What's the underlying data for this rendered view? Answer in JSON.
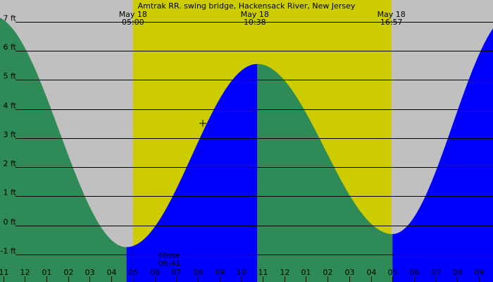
{
  "chart_data": {
    "type": "area",
    "title": "Amtrak RR. swing bridge, Hackensack River, New Jersey",
    "xlabel": "",
    "ylabel": "",
    "x_unit": "hour",
    "xlim": [
      -1.15,
      21.65
    ],
    "ylim": [
      -1.95,
      7.75
    ],
    "day_window": [
      5.0,
      16.95
    ],
    "colors": {
      "background": "#c0c0c0",
      "day": "#cccc00",
      "falling": "#2e8b57",
      "rising": "#0000ff",
      "grid": "#000000"
    },
    "y_ticks": [
      {
        "value": -1,
        "label": "-1 ft"
      },
      {
        "value": 0,
        "label": "0 ft"
      },
      {
        "value": 1,
        "label": "1 ft"
      },
      {
        "value": 2,
        "label": "2 ft"
      },
      {
        "value": 3,
        "label": "3 ft"
      },
      {
        "value": 4,
        "label": "4 ft"
      },
      {
        "value": 5,
        "label": "5 ft"
      },
      {
        "value": 6,
        "label": "6 ft"
      },
      {
        "value": 7,
        "label": "7 ft"
      }
    ],
    "x_ticks": [
      {
        "value": -1,
        "label": "11"
      },
      {
        "value": 0,
        "label": "12"
      },
      {
        "value": 1,
        "label": "01"
      },
      {
        "value": 2,
        "label": "02"
      },
      {
        "value": 3,
        "label": "03"
      },
      {
        "value": 4,
        "label": "04"
      },
      {
        "value": 5,
        "label": "05"
      },
      {
        "value": 6,
        "label": "06"
      },
      {
        "value": 7,
        "label": "07"
      },
      {
        "value": 8,
        "label": "08"
      },
      {
        "value": 9,
        "label": "09"
      },
      {
        "value": 10,
        "label": "10"
      },
      {
        "value": 11,
        "label": "11"
      },
      {
        "value": 12,
        "label": "12"
      },
      {
        "value": 13,
        "label": "01"
      },
      {
        "value": 14,
        "label": "02"
      },
      {
        "value": 15,
        "label": "03"
      },
      {
        "value": 16,
        "label": "04"
      },
      {
        "value": 17,
        "label": "05"
      },
      {
        "value": 18,
        "label": "06"
      },
      {
        "value": 19,
        "label": "07"
      },
      {
        "value": 20,
        "label": "08"
      },
      {
        "value": 21,
        "label": "09"
      }
    ],
    "top_labels": [
      {
        "x": 5.0,
        "date": "May 18",
        "time": "05:00"
      },
      {
        "x": 10.633,
        "date": "May 18",
        "time": "10:38"
      },
      {
        "x": 16.95,
        "date": "May 18",
        "time": "16:57"
      }
    ],
    "bottom_labels": [
      {
        "x": 6.683,
        "name": "Mnsa",
        "time": "06:41"
      }
    ],
    "extremes": [
      {
        "x": -1.5,
        "y": 7.2
      },
      {
        "x": 4.7,
        "y": -0.75
      },
      {
        "x": 10.75,
        "y": 5.55
      },
      {
        "x": 17.0,
        "y": -0.3
      },
      {
        "x": 22.6,
        "y": 7.3
      }
    ]
  }
}
